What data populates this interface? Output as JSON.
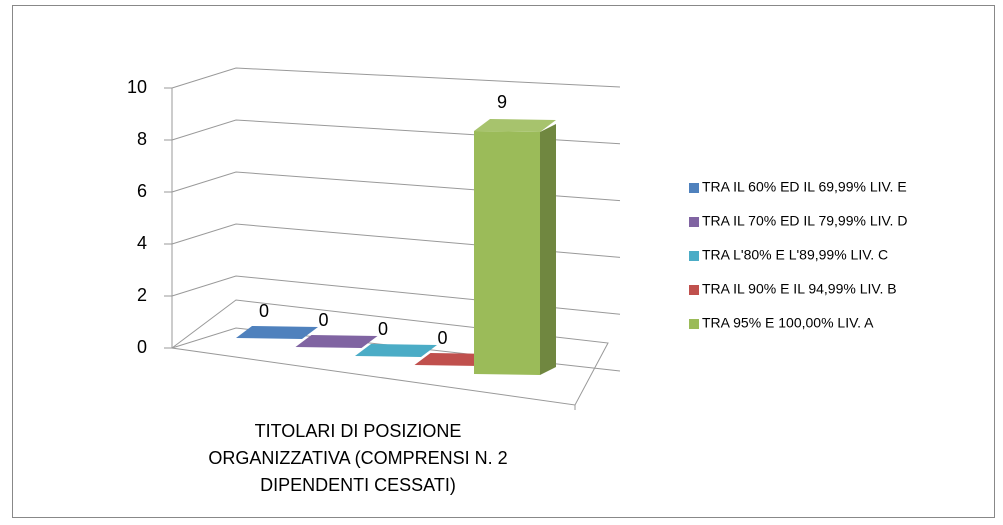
{
  "chart_data": {
    "type": "bar3d",
    "categories": [
      "TITOLARI DI POSIZIONE ORGANIZZATIVA (COMPRENSI N. 2 DIPENDENTI CESSATI)"
    ],
    "series": [
      {
        "name": "TRA IL 60% ED IL 69,99% LIV. E",
        "color": "#4f81bd",
        "values": [
          0
        ]
      },
      {
        "name": "TRA IL 70% ED IL 79,99% LIV. D",
        "color": "#8064a2",
        "values": [
          0
        ]
      },
      {
        "name": "TRA L'80% E L'89,99% LIV. C",
        "color": "#4bacc6",
        "values": [
          0
        ]
      },
      {
        "name": "TRA IL 90% E IL 94,99% LIV. B",
        "color": "#c0504d",
        "values": [
          0
        ]
      },
      {
        "name": "TRA 95% E 100,00% LIV. A",
        "color": "#9bbb59",
        "values": [
          9
        ]
      }
    ],
    "ylim": [
      0,
      10
    ],
    "yticks": [
      0,
      2,
      4,
      6,
      8,
      10
    ],
    "grid": true,
    "legend": "right"
  }
}
